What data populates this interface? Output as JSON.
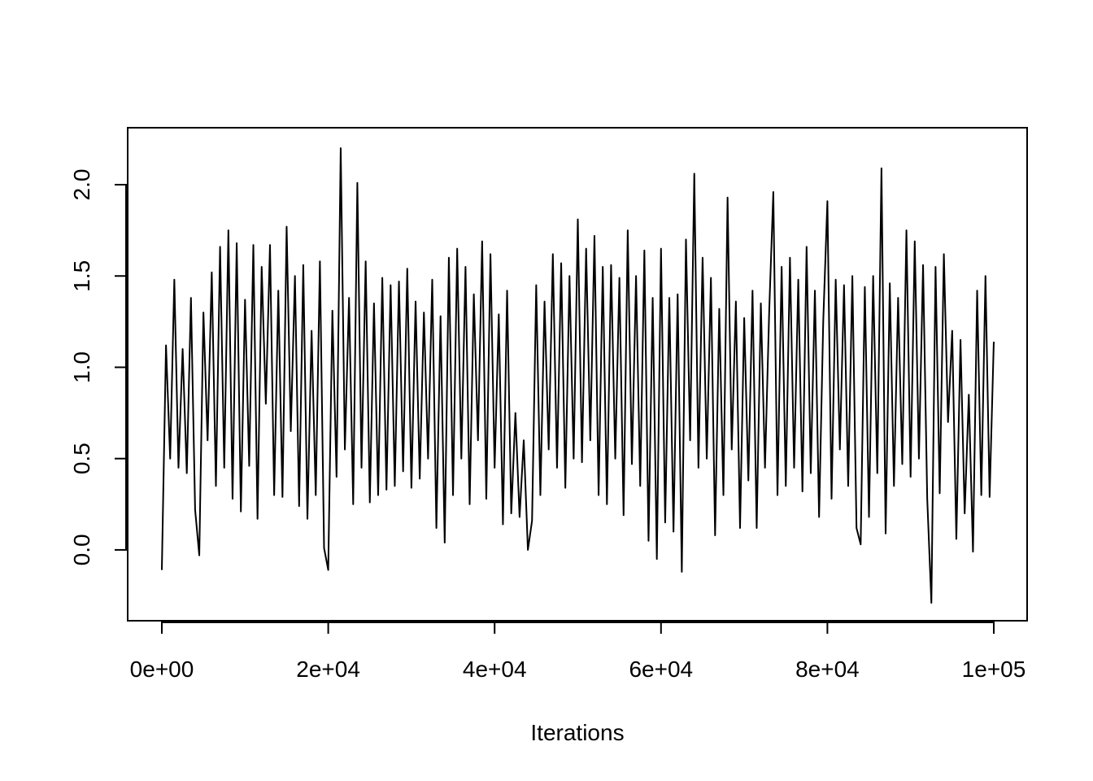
{
  "chart_data": {
    "type": "line",
    "xlabel": "Iterations",
    "xlim": [
      -4106,
      104008
    ],
    "ylim": [
      -0.388,
      2.312
    ],
    "xticks": [
      {
        "value": 0,
        "label": "0e+00"
      },
      {
        "value": 20000,
        "label": "2e+04"
      },
      {
        "value": 40000,
        "label": "4e+04"
      },
      {
        "value": 60000,
        "label": "6e+04"
      },
      {
        "value": 80000,
        "label": "8e+04"
      },
      {
        "value": 100000,
        "label": "1e+05"
      }
    ],
    "yticks": [
      {
        "value": 0,
        "label": "0.0"
      },
      0.5,
      {
        "value": 1,
        "label": "1.0"
      },
      1.5,
      {
        "value": 2,
        "label": "2.0"
      }
    ],
    "color": "#000000",
    "x": [
      0,
      500,
      1000,
      1500,
      2000,
      2500,
      3000,
      3500,
      4000,
      4500,
      5000,
      5500,
      6000,
      6500,
      7000,
      7500,
      8000,
      8500,
      9000,
      9500,
      10000,
      10500,
      11000,
      11500,
      12000,
      12500,
      13000,
      13500,
      14000,
      14500,
      15000,
      15500,
      16000,
      16500,
      17000,
      17500,
      18000,
      18500,
      19000,
      19500,
      20000,
      20500,
      21000,
      21500,
      22000,
      22500,
      23000,
      23500,
      24000,
      24500,
      25000,
      25500,
      26000,
      26500,
      27000,
      27500,
      28000,
      28500,
      29000,
      29500,
      30000,
      30500,
      31000,
      31500,
      32000,
      32500,
      33000,
      33500,
      34000,
      34500,
      35000,
      35500,
      36000,
      36500,
      37000,
      37500,
      38000,
      38500,
      39000,
      39500,
      40000,
      40500,
      41000,
      41500,
      42000,
      42500,
      43000,
      43500,
      44000,
      44500,
      45000,
      45500,
      46000,
      46500,
      47000,
      47500,
      48000,
      48500,
      49000,
      49500,
      50000,
      50500,
      51000,
      51500,
      52000,
      52500,
      53000,
      53500,
      54000,
      54500,
      55000,
      55500,
      56000,
      56500,
      57000,
      57500,
      58000,
      58500,
      59000,
      59500,
      60000,
      60500,
      61000,
      61500,
      62000,
      62500,
      63000,
      63500,
      64000,
      64500,
      65000,
      65500,
      66000,
      66500,
      67000,
      67500,
      68000,
      68500,
      69000,
      69500,
      70000,
      70500,
      71000,
      71500,
      72000,
      72500,
      73000,
      73500,
      74000,
      74500,
      75000,
      75500,
      76000,
      76500,
      77000,
      77500,
      78000,
      78500,
      79000,
      79500,
      80000,
      80500,
      81000,
      81500,
      82000,
      82500,
      83000,
      83500,
      84000,
      84500,
      85000,
      85500,
      86000,
      86500,
      87000,
      87500,
      88000,
      88500,
      89000,
      89500,
      90000,
      90500,
      91000,
      91500,
      92000,
      92500,
      93000,
      93500,
      94000,
      94500,
      95000,
      95500,
      96000,
      96500,
      97000,
      97500,
      98000,
      98500,
      99000,
      99500,
      100000
    ],
    "values": [
      -0.11,
      1.12,
      0.5,
      1.48,
      0.45,
      1.1,
      0.42,
      1.38,
      0.22,
      -0.03,
      1.3,
      0.6,
      1.52,
      0.35,
      1.66,
      0.45,
      1.75,
      0.28,
      1.68,
      0.21,
      1.37,
      0.46,
      1.67,
      0.17,
      1.55,
      0.8,
      1.67,
      0.3,
      1.42,
      0.29,
      1.77,
      0.65,
      1.5,
      0.24,
      1.56,
      0.17,
      1.2,
      0.3,
      1.58,
      0.01,
      -0.11,
      1.31,
      0.4,
      2.2,
      0.55,
      1.38,
      0.25,
      2.01,
      0.45,
      1.58,
      0.26,
      1.35,
      0.3,
      1.49,
      0.33,
      1.45,
      0.35,
      1.47,
      0.43,
      1.54,
      0.34,
      1.36,
      0.39,
      1.3,
      0.5,
      1.48,
      0.12,
      1.28,
      0.04,
      1.6,
      0.3,
      1.65,
      0.5,
      1.55,
      0.25,
      1.4,
      0.6,
      1.69,
      0.28,
      1.62,
      0.45,
      1.29,
      0.14,
      1.42,
      0.2,
      0.75,
      0.18,
      0.6,
      0.0,
      0.16,
      1.45,
      0.3,
      1.36,
      0.55,
      1.62,
      0.45,
      1.57,
      0.34,
      1.5,
      0.5,
      1.81,
      0.48,
      1.65,
      0.6,
      1.72,
      0.3,
      1.55,
      0.25,
      1.56,
      0.5,
      1.49,
      0.19,
      1.75,
      0.47,
      1.5,
      0.35,
      1.64,
      0.05,
      1.38,
      -0.05,
      1.65,
      0.15,
      1.38,
      0.1,
      1.4,
      -0.12,
      1.7,
      0.6,
      2.06,
      0.45,
      1.6,
      0.5,
      1.49,
      0.08,
      1.32,
      0.3,
      1.93,
      0.55,
      1.36,
      0.12,
      1.27,
      0.38,
      1.42,
      0.12,
      1.35,
      0.45,
      1.3,
      1.96,
      0.3,
      1.55,
      0.35,
      1.6,
      0.45,
      1.48,
      0.32,
      1.66,
      0.42,
      1.42,
      0.18,
      1.25,
      1.91,
      0.28,
      1.48,
      0.55,
      1.45,
      0.35,
      1.5,
      0.12,
      0.03,
      1.44,
      0.18,
      1.5,
      0.42,
      2.09,
      0.09,
      1.46,
      0.35,
      1.38,
      0.47,
      1.75,
      0.4,
      1.69,
      0.5,
      1.56,
      0.28,
      -0.29,
      1.55,
      0.31,
      1.62,
      0.7,
      1.2,
      0.06,
      1.15,
      0.2,
      0.85,
      -0.01,
      1.42,
      0.3,
      1.5,
      0.29,
      1.14
    ]
  }
}
